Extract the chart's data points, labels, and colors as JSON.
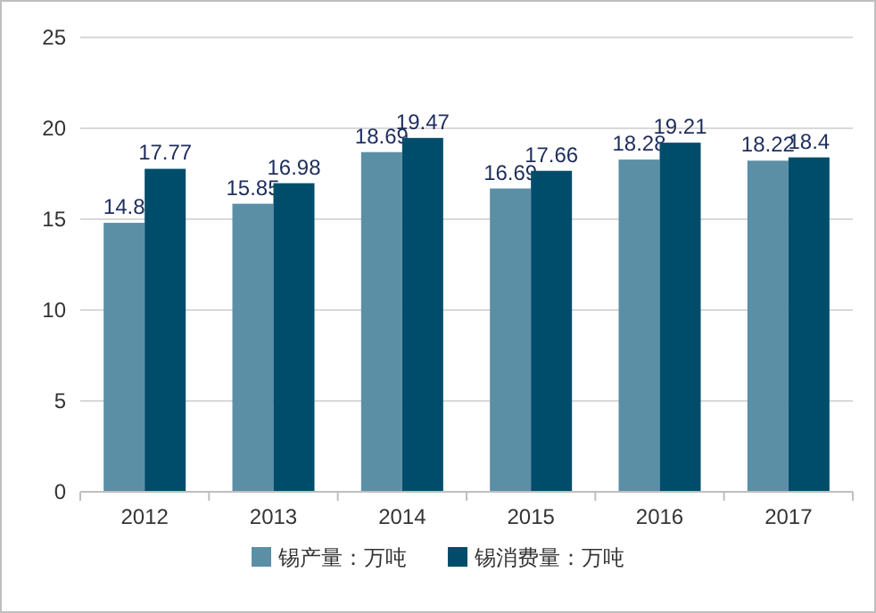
{
  "chart_data": {
    "type": "bar",
    "categories": [
      "2012",
      "2013",
      "2014",
      "2015",
      "2016",
      "2017"
    ],
    "series": [
      {
        "name": "锡产量：万吨",
        "color": "#5b8fa6",
        "values": [
          14.8,
          15.85,
          18.69,
          16.69,
          18.28,
          18.22
        ]
      },
      {
        "name": "锡消费量：万吨",
        "color": "#004d6b",
        "values": [
          17.77,
          16.98,
          19.47,
          17.66,
          19.21,
          18.4
        ]
      }
    ],
    "ylim": [
      0,
      25
    ],
    "yticks": [
      0,
      5,
      10,
      15,
      20,
      25
    ],
    "grid": "y",
    "legend": "bottom",
    "data_labels": true
  }
}
